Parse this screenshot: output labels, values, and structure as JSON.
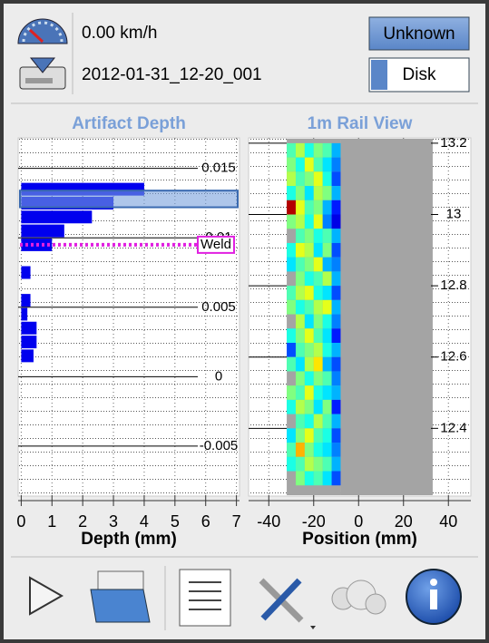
{
  "header": {
    "speed": "0.00 km/h",
    "file": "2012-01-31_12-20_001",
    "buttons": [
      "Unknown",
      "Disk"
    ]
  },
  "chart_data": [
    {
      "type": "hbar",
      "title": "Artifact Depth",
      "xlabel": "Depth (mm)",
      "color": "#0000ee",
      "xlim": [
        -0.1,
        7.1
      ],
      "xticks": [
        0,
        1,
        2,
        3,
        4,
        5,
        6,
        7
      ],
      "ylim": [
        -0.0086,
        0.0172
      ],
      "yticks": [
        -0.005,
        0,
        0.005,
        0.01,
        0.015
      ],
      "y": [
        0.0135,
        0.0125,
        0.0115,
        0.0105,
        0.0095,
        0.0075,
        0.0055,
        0.0045,
        0.0035,
        0.0025,
        0.0015
      ],
      "values": [
        4.0,
        3.0,
        2.3,
        1.4,
        1.0,
        0.3,
        0.3,
        0.2,
        0.5,
        0.5,
        0.4
      ],
      "highlight": [
        0.0122,
        0.0134
      ],
      "annotations": [
        {
          "text": "Weld",
          "y": 0.0095,
          "color": "#e020e0"
        }
      ],
      "grid": true
    },
    {
      "type": "heatmap",
      "title": "1m Rail View",
      "xlabel": "Position (mm)",
      "xlim": [
        -49,
        50
      ],
      "xticks": [
        -40,
        -20,
        0,
        20,
        40
      ],
      "ylim": [
        12.21,
        13.215
      ],
      "yticks": [
        12.4,
        12.6,
        12.8,
        13,
        13.2
      ],
      "nodata_range": [
        -8,
        33
      ],
      "x_edges": [
        -32,
        -28,
        -24,
        -20,
        -16,
        -12,
        -8
      ],
      "y_edges": [
        13.2,
        13.16,
        13.12,
        13.08,
        13.04,
        13.0,
        12.96,
        12.92,
        12.88,
        12.84,
        12.8,
        12.76,
        12.72,
        12.68,
        12.64,
        12.6,
        12.56,
        12.52,
        12.48,
        12.44,
        12.4,
        12.36,
        12.32,
        12.28,
        12.24
      ],
      "z": [
        [
          0.45,
          0.55,
          0.4,
          0.5,
          0.45,
          0.3
        ],
        [
          0.5,
          0.4,
          0.6,
          0.45,
          0.35,
          0.25
        ],
        [
          0.55,
          0.45,
          0.5,
          0.6,
          0.4,
          0.2
        ],
        [
          0.4,
          0.5,
          0.35,
          0.55,
          0.5,
          0.3
        ],
        [
          0.95,
          0.6,
          0.45,
          0.5,
          0.3,
          0.15
        ],
        [
          0.5,
          0.55,
          0.4,
          0.6,
          0.25,
          0.1
        ],
        [
          null,
          0.45,
          0.5,
          0.4,
          0.45,
          0.3
        ],
        [
          0.4,
          0.6,
          0.55,
          0.35,
          0.5,
          0.2
        ],
        [
          0.35,
          0.45,
          0.5,
          0.6,
          0.3,
          0.25
        ],
        [
          null,
          0.5,
          0.4,
          0.45,
          0.55,
          0.3
        ],
        [
          0.45,
          0.55,
          0.6,
          0.4,
          0.35,
          0.2
        ],
        [
          0.5,
          0.4,
          0.45,
          0.55,
          0.6,
          0.3
        ],
        [
          null,
          0.55,
          0.35,
          0.5,
          0.4,
          0.25
        ],
        [
          0.4,
          0.5,
          0.6,
          0.45,
          0.35,
          0.15
        ],
        [
          0.2,
          0.45,
          0.5,
          0.55,
          0.4,
          0.3
        ],
        [
          0.45,
          0.35,
          0.55,
          0.65,
          0.3,
          0.2
        ],
        [
          null,
          0.5,
          0.4,
          0.5,
          0.45,
          0.25
        ],
        [
          0.5,
          0.45,
          0.6,
          0.4,
          0.35,
          0.3
        ],
        [
          0.4,
          0.55,
          0.5,
          0.35,
          0.5,
          0.15
        ],
        [
          null,
          0.45,
          0.4,
          0.55,
          0.45,
          0.3
        ],
        [
          0.35,
          0.5,
          0.6,
          0.45,
          0.4,
          0.2
        ],
        [
          0.45,
          0.7,
          0.5,
          0.4,
          0.35,
          0.25
        ],
        [
          0.4,
          0.45,
          0.55,
          0.5,
          0.45,
          0.3
        ],
        [
          null,
          0.5,
          0.4,
          0.45,
          0.35,
          0.2
        ]
      ],
      "grid": true
    }
  ]
}
